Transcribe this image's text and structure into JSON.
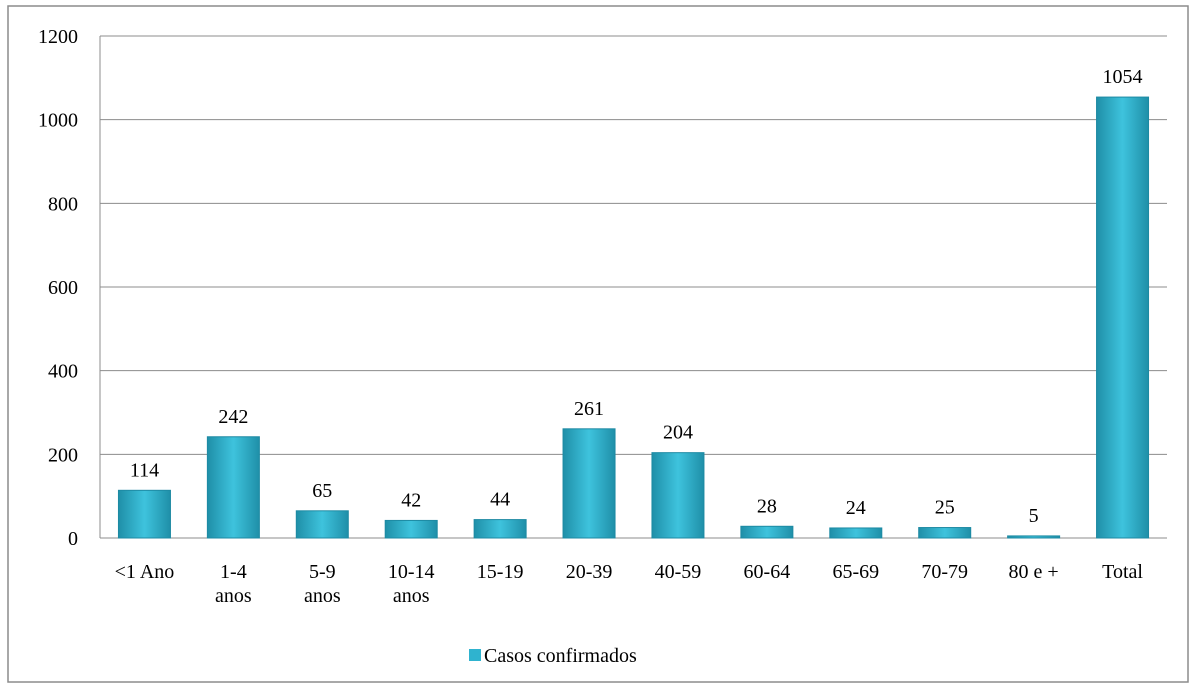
{
  "chart_data": {
    "type": "bar",
    "categories": [
      "<1 Ano",
      "1-4\nanos",
      "5-9\nanos",
      "10-14\nanos",
      "15-19",
      "20-39",
      "40-59",
      "60-64",
      "65-69",
      "70-79",
      "80 e +",
      "Total"
    ],
    "series": [
      {
        "name": "Casos confirmados",
        "color": "#2fb3cf",
        "values": [
          114,
          242,
          65,
          42,
          44,
          261,
          204,
          28,
          24,
          25,
          5,
          1054
        ]
      }
    ],
    "ylim": [
      0,
      1200
    ],
    "yticks": [
      0,
      200,
      400,
      600,
      800,
      1000,
      1200
    ],
    "grid": true,
    "legend": "bottom"
  }
}
